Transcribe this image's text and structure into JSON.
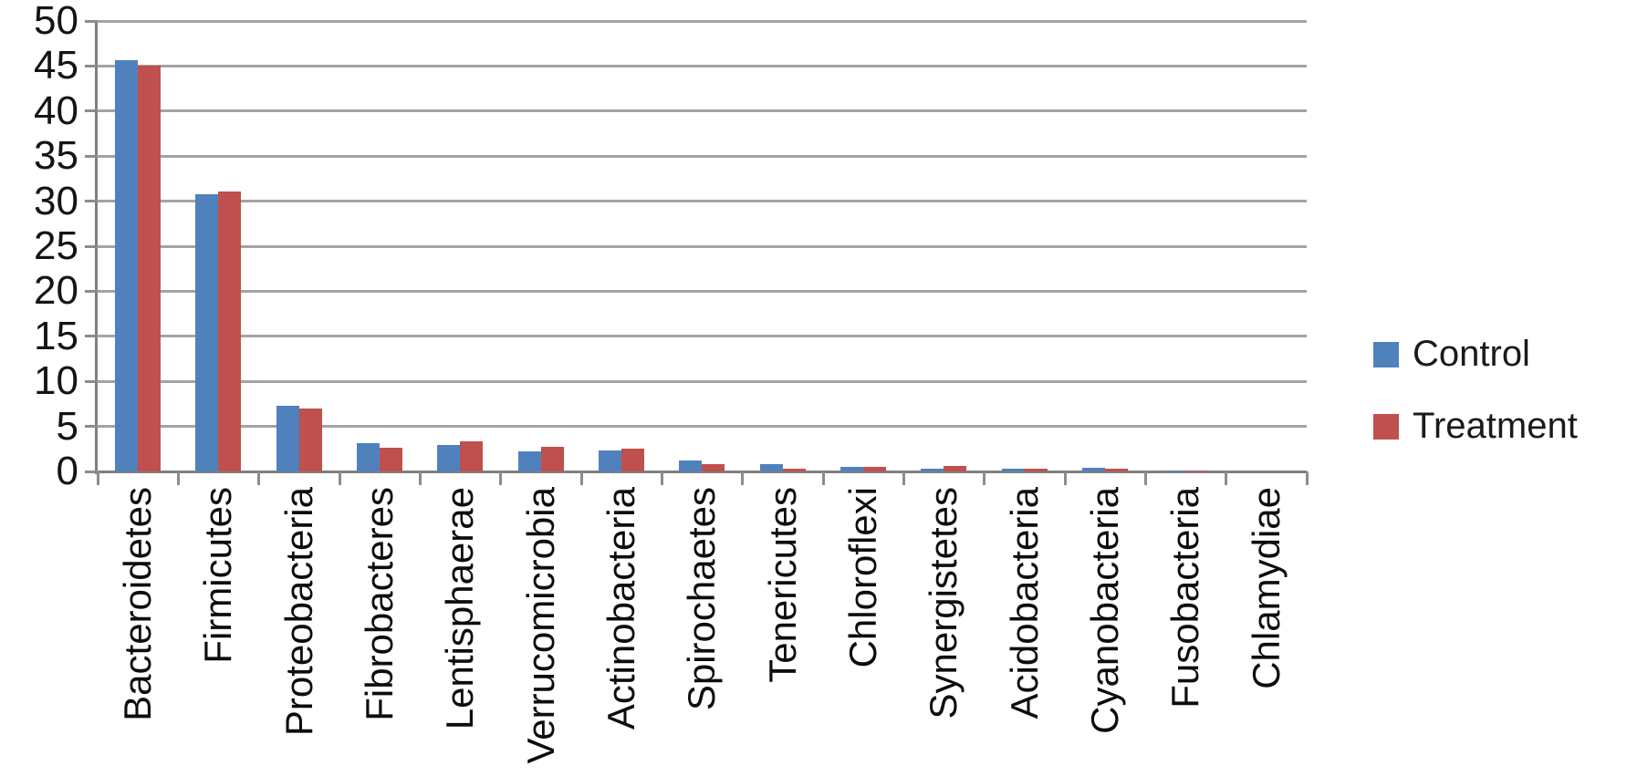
{
  "chart_data": {
    "type": "bar",
    "title": "",
    "xlabel": "",
    "ylabel": "",
    "categories": [
      "Bacteroidetes",
      "Firmicutes",
      "Proteobacteria",
      "Fibrobacteres",
      "Lentisphaerae",
      "Verrucomicrobia",
      "Actinobacteria",
      "Spirochaetes",
      "Tenericutes",
      "Chloroflexi",
      "Synergistetes",
      "Acidobacteria",
      "Cyanobacteria",
      "Fusobacteria",
      "Chlamydiae"
    ],
    "series": [
      {
        "name": "Control",
        "color": "#4F81BD",
        "values": [
          45.6,
          30.8,
          7.3,
          3.1,
          2.9,
          2.2,
          2.3,
          1.2,
          0.8,
          0.5,
          0.35,
          0.3,
          0.45,
          0.1,
          0
        ]
      },
      {
        "name": "Treatment",
        "color": "#C0504D",
        "values": [
          45.0,
          31.1,
          7.0,
          2.6,
          3.3,
          2.7,
          2.5,
          0.8,
          0.3,
          0.5,
          0.6,
          0.3,
          0.35,
          0.1,
          0
        ]
      }
    ],
    "ylim": [
      0,
      50
    ],
    "yticks": [
      0,
      5,
      10,
      15,
      20,
      25,
      30,
      35,
      40,
      45,
      50
    ],
    "grid": "horizontal",
    "legend_position": "right"
  },
  "colors": {
    "control": "#4F81BD",
    "treatment": "#C0504D",
    "gridline": "#a3a3a3",
    "axis": "#7f7f7f",
    "text": "#141414",
    "background": "#ffffff"
  }
}
